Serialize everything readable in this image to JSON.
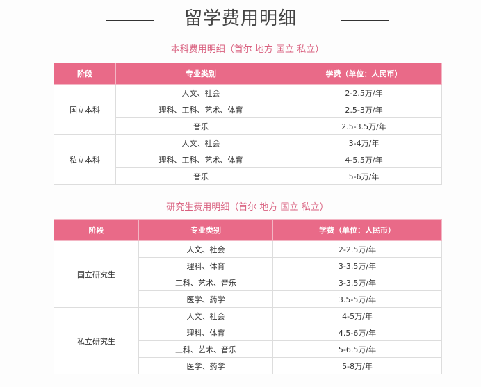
{
  "title": "留学费用明细",
  "undergrad": {
    "subtitle": "本科费用明细（首尔 地方 国立 私立）",
    "headers": [
      "阶段",
      "专业类别",
      "学费（单位：人民币）"
    ],
    "groups": [
      {
        "stage": "国立本科",
        "rows": [
          [
            "人文、社会",
            "2-2.5万/年"
          ],
          [
            "理科、工科、艺术、体育",
            "2.5-3万/年"
          ],
          [
            "音乐",
            "2.5-3.5万/年"
          ]
        ]
      },
      {
        "stage": "私立本科",
        "rows": [
          [
            "人文、社会",
            "3-4万/年"
          ],
          [
            "理科、工科、艺术、体育",
            "4-5.5万/年"
          ],
          [
            "音乐",
            "5-6万/年"
          ]
        ]
      }
    ]
  },
  "graduate": {
    "subtitle": "研究生费用明细（首尔 地方 国立 私立）",
    "headers": [
      "阶段",
      "专业类别",
      "学费（单位：人民币）"
    ],
    "groups": [
      {
        "stage": "国立研究生",
        "rows": [
          [
            "人文、社会",
            "2-2.5万/年"
          ],
          [
            "理科、体育",
            "3-3.5万/年"
          ],
          [
            "工科、艺术、音乐",
            "3-3.5万/年"
          ],
          [
            "医学、药学",
            "3.5-5万/年"
          ]
        ]
      },
      {
        "stage": "私立研究生",
        "rows": [
          [
            "人文、社会",
            "4-5万/年"
          ],
          [
            "理科、体育",
            "4.5-6万/年"
          ],
          [
            "工科、艺术、音乐",
            "5-6.5万/年"
          ],
          [
            "医学、药学",
            "5-8万/年"
          ]
        ]
      }
    ]
  }
}
